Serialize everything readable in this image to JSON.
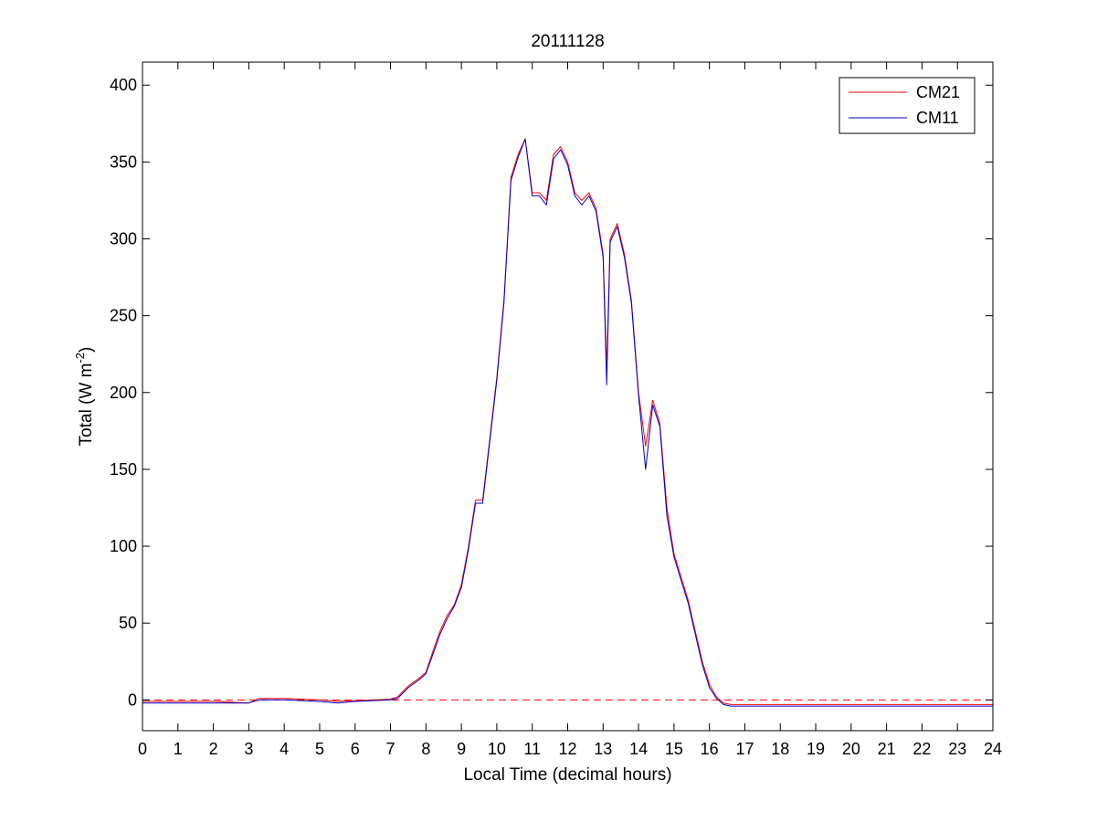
{
  "chart_data": {
    "type": "line",
    "title": "20111128",
    "xlabel": "Local Time (decimal hours)",
    "ylabel": {
      "prefix": "Total (W m",
      "superscript": "-2",
      "suffix": ")"
    },
    "xlim": [
      0,
      24
    ],
    "ylim": [
      -20,
      415
    ],
    "xticks": [
      0,
      1,
      2,
      3,
      4,
      5,
      6,
      7,
      8,
      9,
      10,
      11,
      12,
      13,
      14,
      15,
      16,
      17,
      18,
      19,
      20,
      21,
      22,
      23,
      24
    ],
    "yticks": [
      0,
      50,
      100,
      150,
      200,
      250,
      300,
      350,
      400
    ],
    "grid": false,
    "legend_position": "top-right",
    "reference_line": {
      "y": 0,
      "style": "dashed",
      "color": "#ff0000"
    },
    "series": [
      {
        "name": "CM21",
        "color": "#ff0000",
        "x": [
          0,
          1,
          2,
          3,
          3.3,
          4,
          5,
          5.5,
          6,
          7,
          7.2,
          7.5,
          7.8,
          8,
          8.2,
          8.4,
          8.6,
          8.8,
          9,
          9.2,
          9.4,
          9.6,
          9.8,
          10,
          10.2,
          10.4,
          10.6,
          10.8,
          11,
          11.2,
          11.4,
          11.6,
          11.8,
          12,
          12.2,
          12.4,
          12.6,
          12.8,
          13,
          13.1,
          13.2,
          13.4,
          13.6,
          13.8,
          14,
          14.2,
          14.4,
          14.6,
          14.8,
          15,
          15.2,
          15.4,
          15.6,
          15.8,
          16,
          16.2,
          16.4,
          16.6,
          16.8,
          17,
          17.5,
          18,
          19,
          20,
          21,
          22,
          23,
          24
        ],
        "values": [
          -1,
          -1,
          -1,
          -2,
          1,
          1,
          0,
          -1,
          -0.5,
          0.5,
          2,
          9,
          14,
          18,
          32,
          45,
          55,
          62,
          75,
          100,
          130,
          130,
          170,
          210,
          260,
          340,
          355,
          365,
          330,
          330,
          325,
          355,
          360,
          350,
          330,
          325,
          330,
          320,
          290,
          215,
          300,
          310,
          290,
          260,
          200,
          165,
          195,
          180,
          125,
          95,
          80,
          65,
          45,
          25,
          10,
          2,
          -2,
          -3,
          -3,
          -3,
          -3,
          -3,
          -3,
          -3,
          -3,
          -3,
          -3,
          -3
        ]
      },
      {
        "name": "CM11",
        "color": "#0000cc",
        "x": [
          0,
          1,
          2,
          3,
          3.3,
          4,
          5,
          5.5,
          6,
          7,
          7.2,
          7.5,
          7.8,
          8,
          8.2,
          8.4,
          8.6,
          8.8,
          9,
          9.2,
          9.4,
          9.6,
          9.8,
          10,
          10.2,
          10.4,
          10.6,
          10.8,
          11,
          11.2,
          11.4,
          11.6,
          11.8,
          12,
          12.2,
          12.4,
          12.6,
          12.8,
          13,
          13.1,
          13.2,
          13.4,
          13.6,
          13.8,
          14,
          14.2,
          14.4,
          14.6,
          14.8,
          15,
          15.2,
          15.4,
          15.6,
          15.8,
          16,
          16.2,
          16.4,
          16.6,
          16.8,
          17,
          17.5,
          18,
          19,
          20,
          21,
          22,
          23,
          24
        ],
        "values": [
          -2,
          -2,
          -2,
          -2,
          0,
          0,
          -1,
          -2,
          -1,
          0,
          1,
          8,
          13,
          17,
          30,
          43,
          53,
          61,
          73,
          98,
          128,
          128,
          168,
          208,
          258,
          338,
          353,
          365,
          328,
          328,
          322,
          352,
          358,
          348,
          328,
          322,
          328,
          318,
          288,
          205,
          298,
          308,
          288,
          258,
          198,
          150,
          192,
          178,
          120,
          93,
          78,
          63,
          43,
          23,
          8,
          1,
          -3,
          -4,
          -4,
          -4,
          -4,
          -4,
          -4,
          -4,
          -4,
          -4,
          -4,
          -4
        ]
      }
    ]
  }
}
